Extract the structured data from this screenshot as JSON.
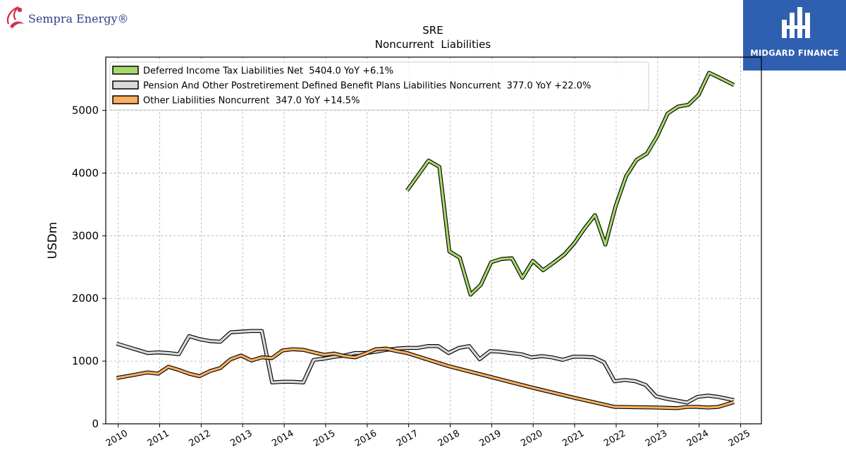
{
  "logos": {
    "left": "Sempra Energy®",
    "right": "MIDGARD FINANCE"
  },
  "chart_data": {
    "type": "line",
    "title": "SRE",
    "subtitle": "Noncurrent  Liabilities",
    "ylabel": "USDm",
    "xlabel": "",
    "xlim": [
      2009.7,
      2025.5
    ],
    "ylim": [
      0,
      5850
    ],
    "yticks": [
      0,
      1000,
      2000,
      3000,
      4000,
      5000
    ],
    "xticks": [
      "2010",
      "2011",
      "2012",
      "2013",
      "2014",
      "2015",
      "2016",
      "2017",
      "2018",
      "2019",
      "2020",
      "2021",
      "2022",
      "2023",
      "2024",
      "2025"
    ],
    "grid": true,
    "legend_position": "top-left",
    "series": [
      {
        "name": "Deferred Income Tax Liabilities Net  5404.0 YoY +6.1%",
        "color": "#a6d96a",
        "x": [
          2016.96,
          2017.21,
          2017.48,
          2017.74,
          2017.98,
          2018.23,
          2018.49,
          2018.74,
          2018.99,
          2019.24,
          2019.49,
          2019.74,
          2019.99,
          2020.24,
          2020.49,
          2020.75,
          2020.99,
          2021.24,
          2021.49,
          2021.74,
          2021.99,
          2022.24,
          2022.49,
          2022.74,
          2022.99,
          2023.24,
          2023.49,
          2023.74,
          2023.99,
          2024.24,
          2024.49,
          2024.84
        ],
        "values": [
          3720,
          3950,
          4200,
          4100,
          2750,
          2650,
          2060,
          2220,
          2580,
          2630,
          2640,
          2330,
          2600,
          2450,
          2570,
          2700,
          2880,
          3120,
          3330,
          2860,
          3480,
          3950,
          4210,
          4310,
          4590,
          4950,
          5060,
          5090,
          5250,
          5600,
          5520,
          5404
        ]
      },
      {
        "name": "Pension And Other Postretirement Defined Benefit Plans Liabilities Noncurrent  377.0 YoY +22.0%",
        "color": "#d9d9d9",
        "x": [
          2009.96,
          2010.21,
          2010.46,
          2010.71,
          2010.96,
          2011.21,
          2011.46,
          2011.71,
          2011.96,
          2012.21,
          2012.46,
          2012.71,
          2012.96,
          2013.21,
          2013.46,
          2013.71,
          2013.96,
          2014.21,
          2014.46,
          2014.71,
          2014.96,
          2015.21,
          2015.46,
          2015.71,
          2015.96,
          2016.21,
          2016.46,
          2016.71,
          2016.96,
          2017.21,
          2017.46,
          2017.71,
          2017.96,
          2018.21,
          2018.46,
          2018.71,
          2018.96,
          2019.21,
          2019.46,
          2019.71,
          2019.96,
          2020.21,
          2020.46,
          2020.71,
          2020.96,
          2021.21,
          2021.46,
          2021.71,
          2021.96,
          2022.21,
          2022.46,
          2022.71,
          2022.96,
          2023.21,
          2023.46,
          2023.71,
          2023.96,
          2024.21,
          2024.46,
          2024.84
        ],
        "values": [
          1280,
          1230,
          1180,
          1130,
          1140,
          1130,
          1110,
          1400,
          1350,
          1320,
          1310,
          1460,
          1470,
          1480,
          1480,
          660,
          670,
          670,
          660,
          1020,
          1040,
          1070,
          1090,
          1130,
          1130,
          1150,
          1180,
          1200,
          1210,
          1210,
          1240,
          1240,
          1130,
          1210,
          1240,
          1030,
          1160,
          1150,
          1130,
          1110,
          1060,
          1080,
          1060,
          1020,
          1070,
          1070,
          1060,
          980,
          680,
          700,
          680,
          620,
          440,
          400,
          370,
          340,
          430,
          450,
          430,
          377
        ]
      },
      {
        "name": "Other Liabilities Noncurrent  347.0 YoY +14.5%",
        "color": "#fdae61",
        "x": [
          2009.96,
          2010.21,
          2010.46,
          2010.71,
          2010.96,
          2011.21,
          2011.46,
          2011.71,
          2011.96,
          2012.21,
          2012.46,
          2012.71,
          2012.96,
          2013.21,
          2013.46,
          2013.71,
          2013.96,
          2014.21,
          2014.46,
          2014.71,
          2014.96,
          2015.21,
          2015.46,
          2015.71,
          2015.96,
          2016.21,
          2016.46,
          2016.71,
          2016.96,
          2017.96,
          2018.96,
          2019.96,
          2020.96,
          2021.96,
          2022.96,
          2023.46,
          2023.71,
          2023.96,
          2024.21,
          2024.46,
          2024.84
        ],
        "values": [
          730,
          760,
          790,
          820,
          800,
          910,
          860,
          800,
          760,
          840,
          890,
          1030,
          1090,
          1010,
          1060,
          1050,
          1170,
          1190,
          1180,
          1140,
          1100,
          1120,
          1080,
          1060,
          1120,
          1190,
          1200,
          1160,
          1130,
          920,
          750,
          580,
          420,
          270,
          260,
          250,
          270,
          270,
          260,
          270,
          347
        ]
      }
    ]
  }
}
